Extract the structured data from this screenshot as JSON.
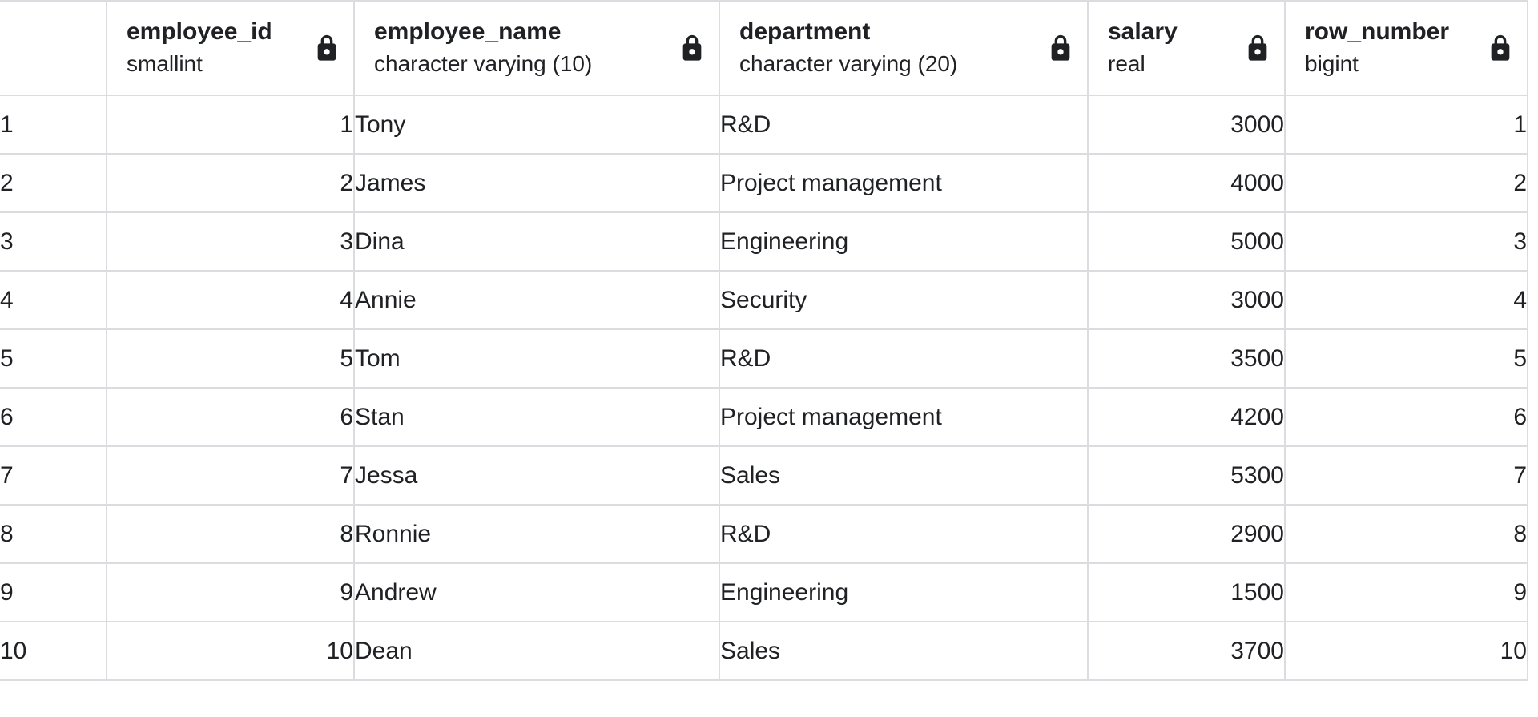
{
  "table": {
    "columns": [
      {
        "name": "employee_id",
        "type": "smallint",
        "locked": true,
        "align": "right"
      },
      {
        "name": "employee_name",
        "type": "character varying (10)",
        "locked": true,
        "align": "left"
      },
      {
        "name": "department",
        "type": "character varying (20)",
        "locked": true,
        "align": "left"
      },
      {
        "name": "salary",
        "type": "real",
        "locked": true,
        "align": "right"
      },
      {
        "name": "row_number",
        "type": "bigint",
        "locked": true,
        "align": "right"
      }
    ],
    "rows": [
      {
        "gutter": "1",
        "cells": [
          "1",
          "Tony",
          "R&D",
          "3000",
          "1"
        ]
      },
      {
        "gutter": "2",
        "cells": [
          "2",
          "James",
          "Project management",
          "4000",
          "2"
        ]
      },
      {
        "gutter": "3",
        "cells": [
          "3",
          "Dina",
          "Engineering",
          "5000",
          "3"
        ]
      },
      {
        "gutter": "4",
        "cells": [
          "4",
          "Annie",
          "Security",
          "3000",
          "4"
        ]
      },
      {
        "gutter": "5",
        "cells": [
          "5",
          "Tom",
          "R&D",
          "3500",
          "5"
        ]
      },
      {
        "gutter": "6",
        "cells": [
          "6",
          "Stan",
          "Project management",
          "4200",
          "6"
        ]
      },
      {
        "gutter": "7",
        "cells": [
          "7",
          "Jessa",
          "Sales",
          "5300",
          "7"
        ]
      },
      {
        "gutter": "8",
        "cells": [
          "8",
          "Ronnie",
          "R&D",
          "2900",
          "8"
        ]
      },
      {
        "gutter": "9",
        "cells": [
          "9",
          "Andrew",
          "Engineering",
          "1500",
          "9"
        ]
      },
      {
        "gutter": "10",
        "cells": [
          "10",
          "Dean",
          "Sales",
          "3700",
          "10"
        ]
      }
    ]
  },
  "icons": {
    "lock": "lock-icon"
  },
  "colors": {
    "text": "#202124",
    "border": "#dadce0",
    "cell_background": "#ffffff"
  }
}
